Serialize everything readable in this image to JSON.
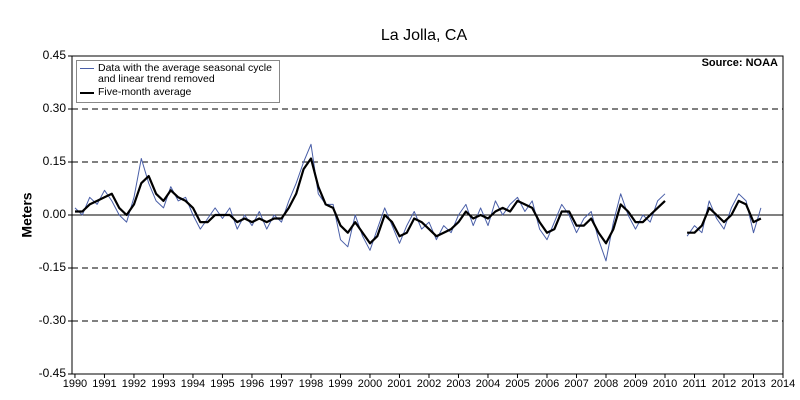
{
  "chart_data": {
    "type": "line",
    "title": "La Jolla, CA",
    "ylabel": "Meters",
    "annotation": "Source: NOAA",
    "x": [
      1990,
      1990.25,
      1990.5,
      1990.75,
      1991,
      1991.25,
      1991.5,
      1991.75,
      1992,
      1992.25,
      1992.5,
      1992.75,
      1993,
      1993.25,
      1993.5,
      1993.75,
      1994,
      1994.25,
      1994.5,
      1994.75,
      1995,
      1995.25,
      1995.5,
      1995.75,
      1996,
      1996.25,
      1996.5,
      1996.75,
      1997,
      1997.25,
      1997.5,
      1997.75,
      1998,
      1998.25,
      1998.5,
      1998.75,
      1999,
      1999.25,
      1999.5,
      1999.75,
      2000,
      2000.25,
      2000.5,
      2000.75,
      2001,
      2001.25,
      2001.5,
      2001.75,
      2002,
      2002.25,
      2002.5,
      2002.75,
      2003,
      2003.25,
      2003.5,
      2003.75,
      2004,
      2004.25,
      2004.5,
      2004.75,
      2005,
      2005.25,
      2005.5,
      2005.75,
      2006,
      2006.25,
      2006.5,
      2006.75,
      2007,
      2007.25,
      2007.5,
      2007.75,
      2008,
      2008.25,
      2008.5,
      2008.75,
      2009,
      2009.25,
      2009.5,
      2009.75,
      2010,
      2010.25,
      2010.5,
      2010.75,
      2011,
      2011.25,
      2011.5,
      2011.75,
      2012,
      2012.25,
      2012.5,
      2012.75,
      2013,
      2013.25
    ],
    "series": [
      {
        "name": "Data with the average seasonal cycle and linear trend removed",
        "color": "#4a5fa8",
        "values": [
          0.02,
          0.0,
          0.05,
          0.03,
          0.07,
          0.04,
          0.0,
          -0.02,
          0.05,
          0.16,
          0.09,
          0.04,
          0.02,
          0.08,
          0.04,
          0.05,
          0.0,
          -0.04,
          -0.01,
          0.02,
          -0.01,
          0.02,
          -0.04,
          0.0,
          -0.03,
          0.01,
          -0.04,
          0.0,
          -0.02,
          0.04,
          0.09,
          0.15,
          0.2,
          0.06,
          0.03,
          0.03,
          -0.07,
          -0.09,
          0.0,
          -0.06,
          -0.1,
          -0.04,
          0.02,
          -0.03,
          -0.08,
          -0.03,
          0.01,
          -0.04,
          -0.02,
          -0.07,
          -0.03,
          -0.05,
          0.0,
          0.03,
          -0.03,
          0.02,
          -0.03,
          0.04,
          0.0,
          0.03,
          0.05,
          0.01,
          0.04,
          -0.04,
          -0.07,
          -0.02,
          0.03,
          0.0,
          -0.05,
          -0.01,
          0.01,
          -0.07,
          -0.13,
          -0.02,
          0.06,
          0.0,
          -0.04,
          0.0,
          -0.02,
          0.04,
          0.06,
          null,
          null,
          -0.06,
          -0.03,
          -0.05,
          0.04,
          -0.01,
          -0.04,
          0.02,
          0.06,
          0.04,
          -0.05,
          0.02
        ]
      },
      {
        "name": "Five-month average",
        "color": "#000000",
        "values": [
          0.01,
          0.01,
          0.03,
          0.04,
          0.05,
          0.06,
          0.02,
          0.0,
          0.03,
          0.09,
          0.11,
          0.06,
          0.04,
          0.07,
          0.05,
          0.04,
          0.02,
          -0.02,
          -0.02,
          0.0,
          0.0,
          0.0,
          -0.02,
          -0.01,
          -0.02,
          -0.01,
          -0.02,
          -0.01,
          -0.01,
          0.02,
          0.06,
          0.13,
          0.16,
          0.08,
          0.03,
          0.02,
          -0.03,
          -0.05,
          -0.02,
          -0.05,
          -0.08,
          -0.06,
          0.0,
          -0.02,
          -0.06,
          -0.05,
          -0.01,
          -0.02,
          -0.04,
          -0.06,
          -0.05,
          -0.04,
          -0.02,
          0.01,
          -0.01,
          0.0,
          -0.01,
          0.01,
          0.02,
          0.01,
          0.04,
          0.03,
          0.02,
          -0.02,
          -0.05,
          -0.04,
          0.01,
          0.01,
          -0.03,
          -0.03,
          -0.01,
          -0.05,
          -0.08,
          -0.04,
          0.03,
          0.01,
          -0.02,
          -0.02,
          0.0,
          0.02,
          0.04,
          null,
          null,
          -0.05,
          -0.05,
          -0.03,
          0.02,
          0.0,
          -0.02,
          0.0,
          0.04,
          0.03,
          -0.02,
          -0.01
        ]
      }
    ],
    "xlim": [
      1989.9,
      2014
    ],
    "xticks": [
      1990,
      1991,
      1992,
      1993,
      1994,
      1995,
      1996,
      1997,
      1998,
      1999,
      2000,
      2001,
      2002,
      2003,
      2004,
      2005,
      2006,
      2007,
      2008,
      2009,
      2010,
      2011,
      2012,
      2013,
      2014
    ],
    "ylim": [
      -0.45,
      0.45
    ],
    "yticks": [
      -0.45,
      {
        "value": -0.3,
        "label": "-0.30"
      },
      -0.15,
      {
        "value": 0,
        "label": "0.00"
      },
      0.15,
      {
        "value": 0.3,
        "label": "0.30"
      },
      0.45
    ],
    "grid": true,
    "legend": "upper left"
  }
}
